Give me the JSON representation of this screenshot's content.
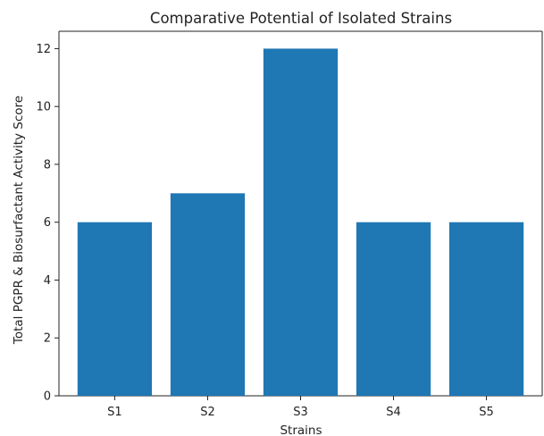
{
  "chart_data": {
    "type": "bar",
    "title": "Comparative Potential of Isolated Strains",
    "xlabel": "Strains",
    "ylabel": "Total PGPR & Biosurfactant Activity Score",
    "categories": [
      "S1",
      "S2",
      "S3",
      "S4",
      "S5"
    ],
    "values": [
      6,
      7,
      12,
      6,
      6
    ],
    "ylim": [
      0,
      12.6
    ],
    "yticks": [
      0,
      2,
      4,
      6,
      8,
      10,
      12
    ],
    "grid": false,
    "legend": "none",
    "bar_color": "#1f77b4",
    "axis_color": "#222222"
  }
}
